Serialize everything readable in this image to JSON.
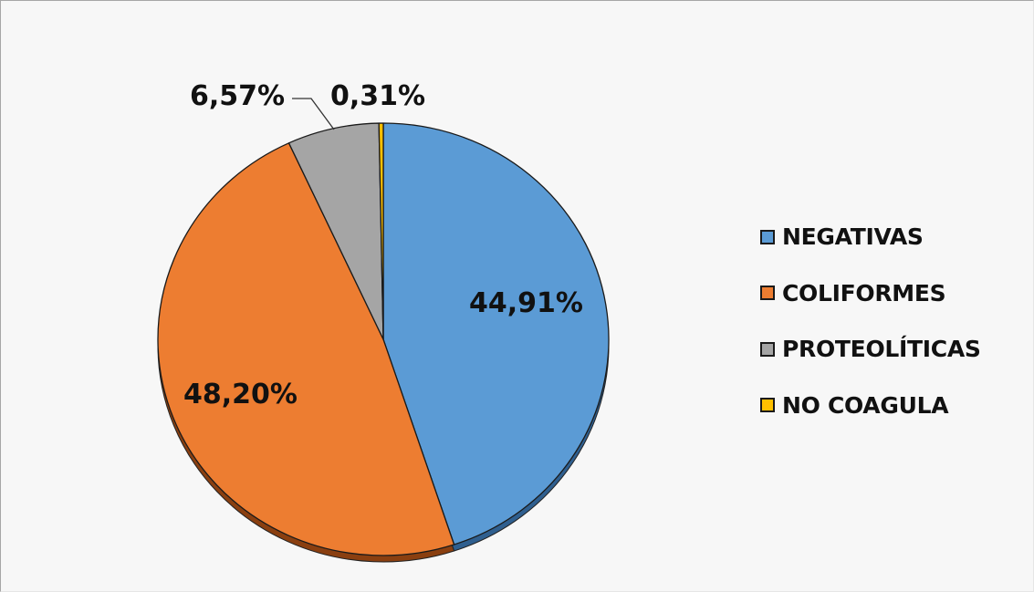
{
  "chart_data": {
    "type": "pie",
    "title": "",
    "categories": [
      "NEGATIVAS",
      "COLIFORMES",
      "PROTEOLÍTICAS",
      "NO COAGULA"
    ],
    "values": [
      44.91,
      48.2,
      6.57,
      0.31
    ],
    "value_labels": [
      "44,91%",
      "48,20%",
      "6,57%",
      "0,31%"
    ],
    "colors": [
      "#5b9bd5",
      "#ed7d31",
      "#a5a5a5",
      "#ffc000"
    ],
    "start_angle_deg": 0,
    "direction": "clockwise",
    "legend_position": "right",
    "style": "3d-pie-slight-tilt"
  },
  "legend": {
    "items": [
      {
        "label": "NEGATIVAS",
        "color": "#5b9bd5"
      },
      {
        "label": "COLIFORMES",
        "color": "#ed7d31"
      },
      {
        "label": "PROTEOLÍTICAS",
        "color": "#a5a5a5"
      },
      {
        "label": "NO COAGULA",
        "color": "#ffc000"
      }
    ]
  },
  "labels": {
    "negativas": "44,91%",
    "coliformes": "48,20%",
    "proteoliticas": "6,57%",
    "no_coagula": "0,31%"
  }
}
